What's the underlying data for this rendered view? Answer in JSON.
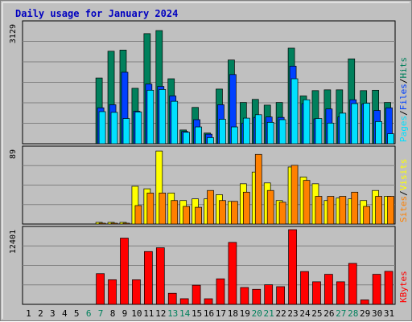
{
  "chart_data": [
    {
      "type": "bar",
      "title": "Daily usage for January 2024",
      "panel": "hits-files-pages",
      "ymax_label": "3129",
      "ylim": [
        0,
        3129
      ],
      "legend": [
        "Pages",
        "/",
        "Files",
        "/",
        "Hits"
      ],
      "colors": {
        "hits": "#00805c",
        "files": "#0040ff",
        "pages": "#00e0ff"
      },
      "categories": [
        "1",
        "2",
        "3",
        "4",
        "5",
        "6",
        "7",
        "8",
        "9",
        "10",
        "11",
        "12",
        "13",
        "14",
        "15",
        "16",
        "17",
        "18",
        "19",
        "20",
        "21",
        "22",
        "23",
        "24",
        "25",
        "26",
        "27",
        "28",
        "29",
        "30",
        "31"
      ],
      "series": [
        {
          "name": "Hits",
          "values": [
            0,
            0,
            0,
            0,
            0,
            0,
            1720,
            2420,
            2450,
            1450,
            2880,
            2960,
            1700,
            360,
            950,
            280,
            1430,
            2190,
            1080,
            1160,
            1010,
            1080,
            2500,
            1250,
            1390,
            1410,
            1410,
            2220,
            1390,
            1400,
            1080
          ]
        },
        {
          "name": "Files",
          "values": [
            0,
            0,
            0,
            0,
            0,
            0,
            940,
            1020,
            1870,
            850,
            1560,
            1500,
            1250,
            320,
            630,
            250,
            1020,
            1810,
            540,
            690,
            700,
            690,
            2030,
            1050,
            650,
            910,
            700,
            1150,
            1040,
            870,
            940
          ]
        },
        {
          "name": "Pages",
          "values": [
            0,
            0,
            0,
            0,
            0,
            0,
            840,
            820,
            660,
            830,
            1400,
            1420,
            1110,
            300,
            440,
            160,
            640,
            440,
            670,
            760,
            560,
            630,
            1700,
            1150,
            660,
            540,
            800,
            1050,
            1060,
            580,
            260
          ]
        }
      ]
    },
    {
      "type": "bar",
      "panel": "visits-sites",
      "ymax_label": "89",
      "ylim": [
        0,
        89
      ],
      "legend": [
        "Sites",
        "/",
        "Visits"
      ],
      "colors": {
        "visits": "#ffff00",
        "sites": "#ff8000"
      },
      "categories": [
        "1",
        "2",
        "3",
        "4",
        "5",
        "6",
        "7",
        "8",
        "9",
        "10",
        "11",
        "12",
        "13",
        "14",
        "15",
        "16",
        "17",
        "18",
        "19",
        "20",
        "21",
        "22",
        "23",
        "24",
        "25",
        "26",
        "27",
        "28",
        "29",
        "30",
        "31"
      ],
      "series": [
        {
          "name": "Visits",
          "values": [
            0,
            0,
            0,
            0,
            0,
            0,
            2,
            2,
            2,
            45,
            42,
            87,
            37,
            28,
            30,
            30,
            35,
            27,
            48,
            62,
            49,
            28,
            68,
            56,
            48,
            28,
            31,
            30,
            28,
            40,
            33
          ]
        },
        {
          "name": "Sites",
          "values": [
            0,
            0,
            0,
            0,
            0,
            0,
            1,
            1,
            1,
            22,
            37,
            37,
            28,
            21,
            20,
            40,
            28,
            27,
            38,
            83,
            40,
            26,
            70,
            52,
            33,
            33,
            33,
            38,
            21,
            33,
            33
          ]
        }
      ]
    },
    {
      "type": "bar",
      "panel": "kbytes",
      "ymax_label": "12401",
      "ylim": [
        0,
        12401
      ],
      "legend": [
        "KBytes"
      ],
      "colors": {
        "kbytes": "#ff0000"
      },
      "categories": [
        "1",
        "2",
        "3",
        "4",
        "5",
        "6",
        "7",
        "8",
        "9",
        "10",
        "11",
        "12",
        "13",
        "14",
        "15",
        "16",
        "17",
        "18",
        "19",
        "20",
        "21",
        "22",
        "23",
        "24",
        "25",
        "26",
        "27",
        "28",
        "29",
        "30",
        "31"
      ],
      "series": [
        {
          "name": "KBytes",
          "values": [
            0,
            0,
            0,
            0,
            0,
            0,
            5100,
            4090,
            11000,
            4080,
            8770,
            9400,
            1840,
            940,
            3180,
            930,
            4240,
            10290,
            2800,
            2500,
            3250,
            2940,
            12400,
            5450,
            3750,
            4990,
            3750,
            6800,
            740,
            4990,
            5480
          ]
        }
      ]
    }
  ],
  "weekend_days": [
    6,
    7,
    13,
    14,
    20,
    21,
    27,
    28
  ]
}
